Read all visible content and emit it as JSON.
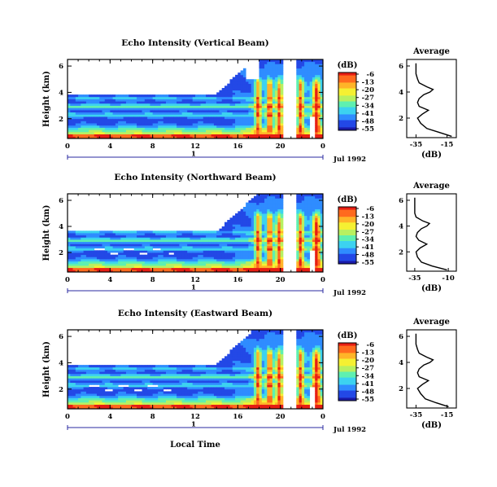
{
  "figure": {
    "x_common_label": "Local Time",
    "date_label": "Jul 1992",
    "day_label": "1",
    "colorbar_unit": "(dB)",
    "colorbar_ticks": [
      "-6",
      "-13",
      "-20",
      "-27",
      "-34",
      "-41",
      "-48",
      "-55"
    ],
    "colormap": [
      "#1a1aa8",
      "#2348e6",
      "#2f8cff",
      "#3cd2f0",
      "#5ff0b0",
      "#b8f060",
      "#f5f032",
      "#ffb428",
      "#ff6a1e",
      "#e61e14"
    ]
  },
  "chart_data": [
    {
      "type": "heatmap",
      "title": "Echo Intensity (Vertical Beam)",
      "xlabel": "",
      "ylabel": "Height (km)",
      "xlim": [
        0,
        24
      ],
      "ylim": [
        0.5,
        6.5
      ],
      "xticks": [
        "0",
        "4",
        "8",
        "12",
        "16",
        "20",
        "0"
      ],
      "yticks": [
        "2",
        "4",
        "6"
      ],
      "zlim": [
        -55,
        -6
      ],
      "average_profile": {
        "title": "Average",
        "xlabel": "(dB)",
        "xticks": [
          "-35",
          "-15"
        ],
        "yticks": [
          "2",
          "4",
          "6"
        ],
        "height_km": [
          0.6,
          0.9,
          1.2,
          1.6,
          2.0,
          2.3,
          2.6,
          2.9,
          3.2,
          3.5,
          3.8,
          4.0,
          4.2,
          4.4,
          4.7,
          5.0,
          5.4,
          5.8,
          6.2
        ],
        "db": [
          -12,
          -20,
          -28,
          -32,
          -34,
          -31,
          -27,
          -33,
          -34,
          -33,
          -30,
          -26,
          -24,
          -28,
          -33,
          -34,
          -35,
          -35,
          -35
        ]
      }
    },
    {
      "type": "heatmap",
      "title": "Echo Intensity (Northward Beam)",
      "xlabel": "",
      "ylabel": "Height (km)",
      "xlim": [
        0,
        24
      ],
      "ylim": [
        0.5,
        6.5
      ],
      "xticks": [
        "0",
        "4",
        "8",
        "12",
        "16",
        "20",
        "0"
      ],
      "yticks": [
        "2",
        "4",
        "6"
      ],
      "zlim": [
        -55,
        -6
      ],
      "average_profile": {
        "title": "Average",
        "xlabel": "(dB)",
        "xticks": [
          "-35",
          "-10"
        ],
        "yticks": [
          "2",
          "4",
          "6"
        ],
        "height_km": [
          0.6,
          0.9,
          1.2,
          1.6,
          2.0,
          2.3,
          2.6,
          2.9,
          3.2,
          3.5,
          3.8,
          4.0,
          4.2,
          4.4,
          4.7,
          5.0,
          5.4,
          5.8,
          6.2
        ],
        "db": [
          -11,
          -22,
          -30,
          -33,
          -34,
          -31,
          -26,
          -32,
          -34,
          -33,
          -30,
          -26,
          -24,
          -29,
          -34,
          -35,
          -35,
          -35,
          -35
        ]
      }
    },
    {
      "type": "heatmap",
      "title": "Echo Intensity (Eastward Beam)",
      "xlabel": "",
      "ylabel": "Height (km)",
      "xlim": [
        0,
        24
      ],
      "ylim": [
        0.5,
        6.5
      ],
      "xticks": [
        "0",
        "4",
        "8",
        "12",
        "16",
        "20",
        "0"
      ],
      "yticks": [
        "2",
        "4",
        "6"
      ],
      "zlim": [
        -55,
        -6
      ],
      "average_profile": {
        "title": "Average",
        "xlabel": "(dB)",
        "xticks": [
          "-35",
          "-15"
        ],
        "yticks": [
          "2",
          "4",
          "6"
        ],
        "height_km": [
          0.6,
          0.9,
          1.2,
          1.6,
          2.0,
          2.3,
          2.6,
          2.9,
          3.2,
          3.5,
          3.8,
          4.0,
          4.2,
          4.4,
          4.7,
          5.0,
          5.4,
          5.8,
          6.2
        ],
        "db": [
          -14,
          -22,
          -29,
          -32,
          -34,
          -31,
          -27,
          -33,
          -34,
          -33,
          -30,
          -26,
          -24,
          -28,
          -33,
          -34,
          -35,
          -35,
          -35
        ]
      }
    }
  ]
}
